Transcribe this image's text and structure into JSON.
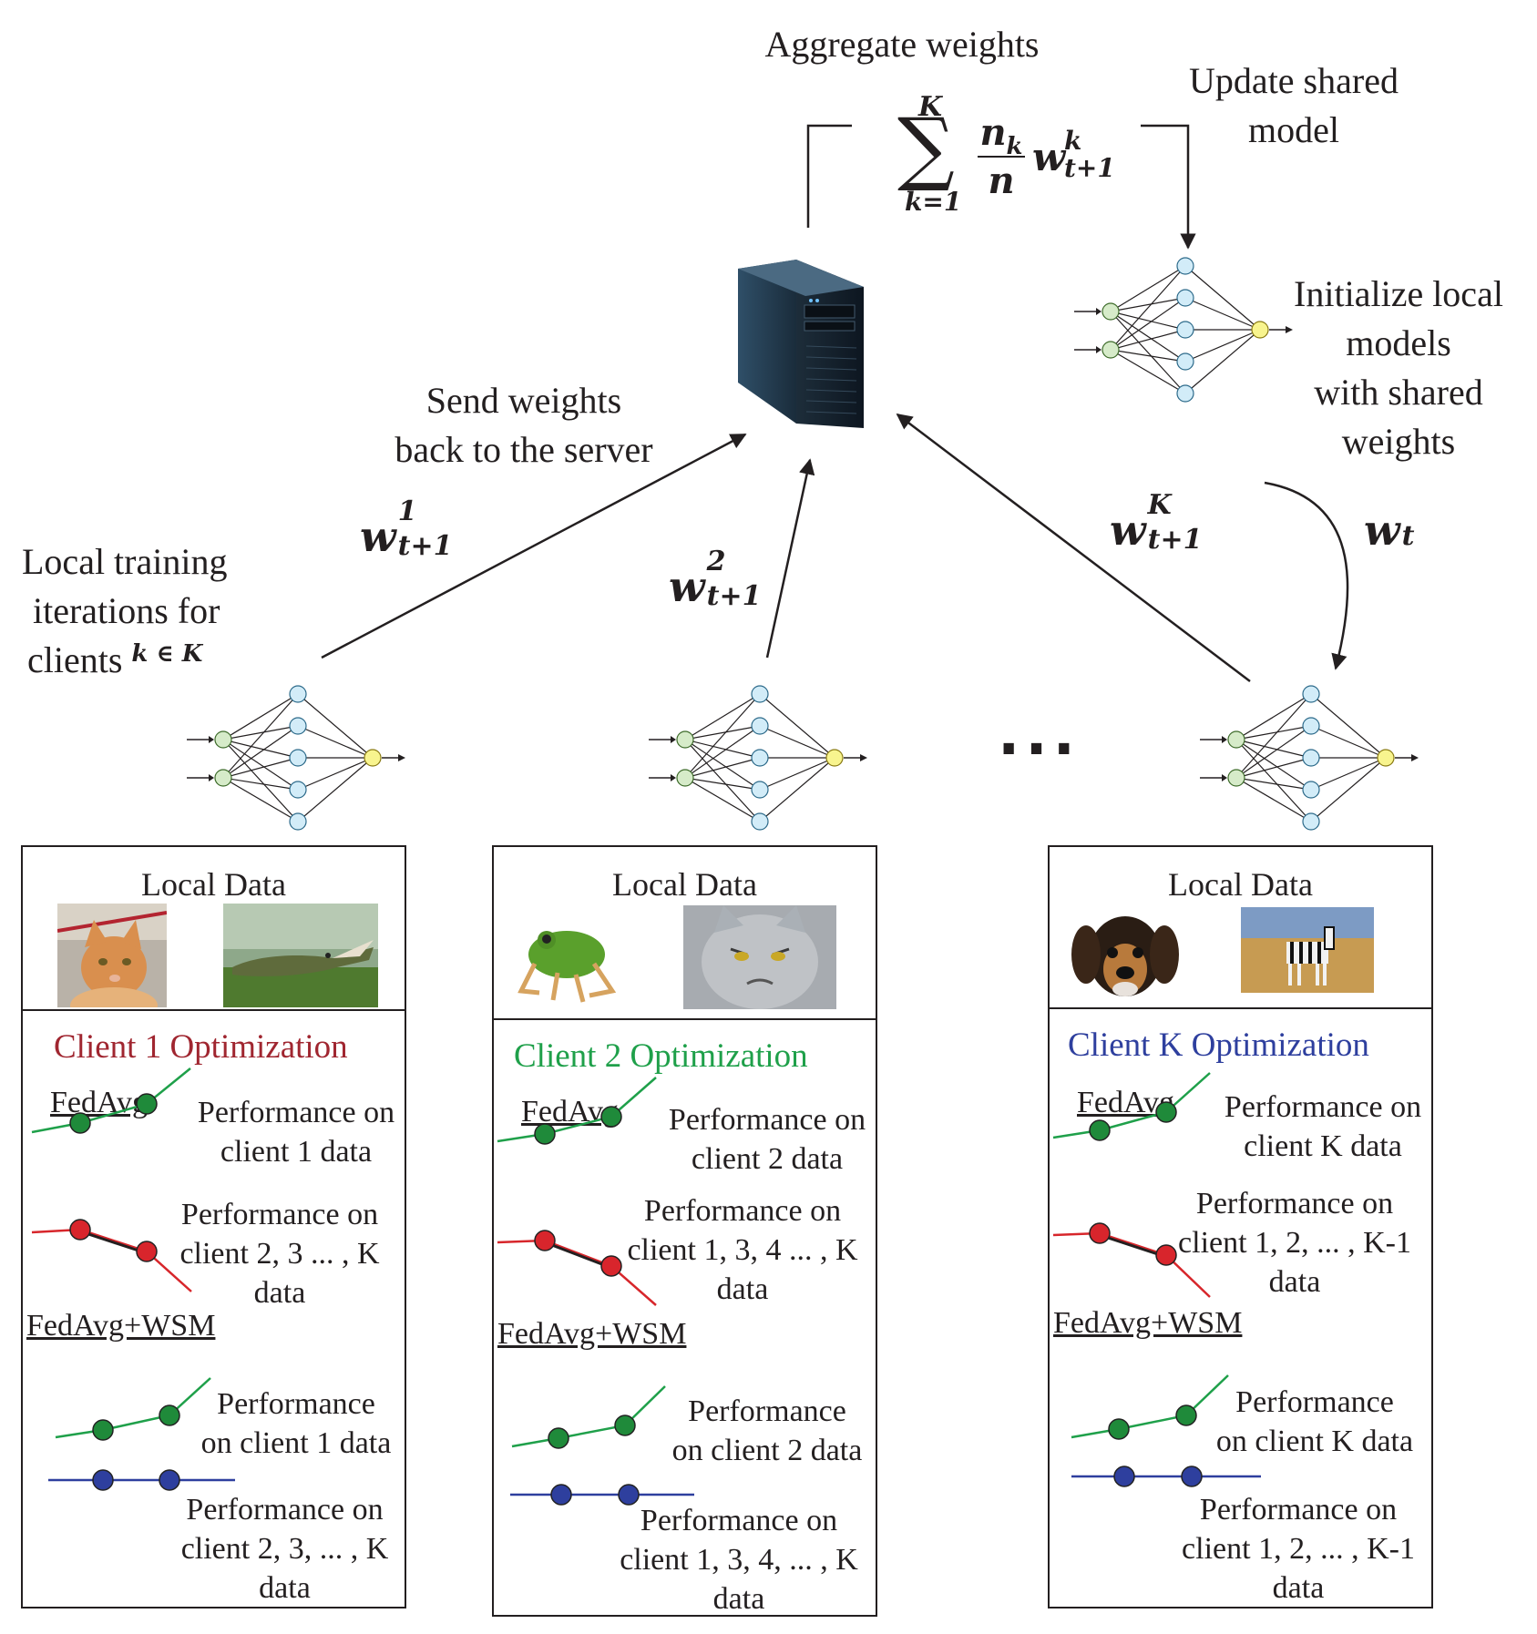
{
  "colors": {
    "ink": "#231f20",
    "client1": "#a02630",
    "client2": "#1fa04a",
    "clientK": "#2e3f9e",
    "green_line": "#1fa04a",
    "green_dot": "#1f8a3a",
    "red_line": "#d7262b",
    "red_dot": "#d8252c",
    "blue": "#2e3f9e",
    "input_node": "#d6ebc9",
    "hidden_node": "#d2ecf8",
    "output_node": "#f8f48e"
  },
  "top": {
    "aggregate_label": "Aggregate weights",
    "update_label": [
      "Update shared",
      "model"
    ],
    "formula": {
      "upper": "K",
      "lower": "k=1",
      "numerator": "n",
      "numerator_sub": "k",
      "denominator": "n",
      "weight": "w",
      "weight_sup": "k",
      "weight_sub": "t+1"
    },
    "init_label": [
      "Initialize local",
      "models",
      "with shared",
      "weights"
    ],
    "send_label": [
      "Send weights",
      "back to the server"
    ],
    "local_training_label": [
      "Local training",
      "iterations for",
      "clients"
    ],
    "local_training_math": "k ∈ K",
    "ellipsis": "...",
    "arrows": [
      {
        "main": "w",
        "sup": "1",
        "sub": "t+1"
      },
      {
        "main": "w",
        "sup": "2",
        "sub": "t+1"
      },
      {
        "main": "w",
        "sup": "K",
        "sub": "t+1"
      },
      {
        "main": "w",
        "sup": "",
        "sub": "t"
      }
    ]
  },
  "clients": [
    {
      "local_data": "Local Data",
      "images": [
        "cat-photo",
        "crocodile-photo"
      ],
      "title": "Client 1 Optimization",
      "fedavg": "FedAvg",
      "fedavg_own": [
        "Performance on",
        "client 1 data"
      ],
      "fedavg_other": [
        "Performance on",
        "client 2, 3 ... , K",
        "data"
      ],
      "wsm": "FedAvg+WSM",
      "wsm_own": [
        "Performance",
        "on client 1 data"
      ],
      "wsm_other": [
        "Performance on",
        "client 2, 3, ... , K",
        "data"
      ]
    },
    {
      "local_data": "Local Data",
      "images": [
        "frog-photo",
        "grumpy-cat-photo"
      ],
      "title": "Client 2 Optimization",
      "fedavg": "FedAvg",
      "fedavg_own": [
        "Performance on",
        "client 2 data"
      ],
      "fedavg_other": [
        "Performance on",
        "client 1, 3, 4 ... , K",
        "data"
      ],
      "wsm": "FedAvg+WSM",
      "wsm_own": [
        "Performance",
        "on client 2 data"
      ],
      "wsm_other": [
        "Performance on",
        "client 1, 3, 4, ... , K",
        "data"
      ]
    },
    {
      "local_data": "Local Data",
      "images": [
        "puppy-photo",
        "zebra-photo"
      ],
      "title": "Client K Optimization",
      "fedavg": "FedAvg",
      "fedavg_own": [
        "Performance on",
        "client K data"
      ],
      "fedavg_other": [
        "Performance on",
        "client 1, 2, ... , K-1",
        "data"
      ],
      "wsm": "FedAvg+WSM",
      "wsm_own": [
        "Performance",
        "on client K data"
      ],
      "wsm_other": [
        "Performance on",
        "client 1, 2, ... , K-1",
        "data"
      ]
    }
  ]
}
